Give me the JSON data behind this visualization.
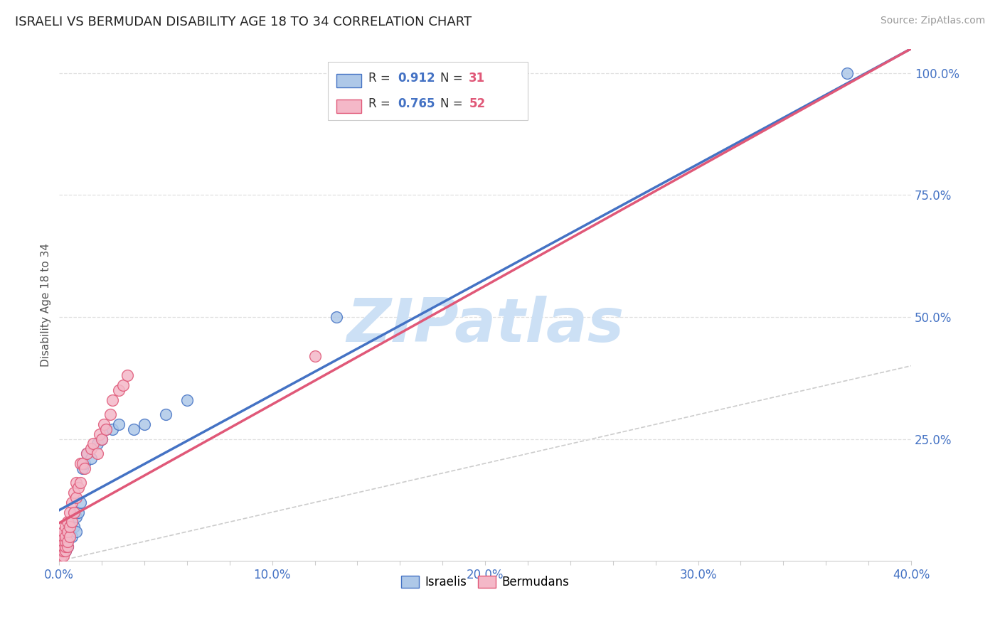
{
  "title": "ISRAELI VS BERMUDAN DISABILITY AGE 18 TO 34 CORRELATION CHART",
  "source": "Source: ZipAtlas.com",
  "ylabel": "Disability Age 18 to 34",
  "xlim": [
    0.0,
    0.4
  ],
  "ylim": [
    0.0,
    1.05
  ],
  "xtick_labels": [
    "0.0%",
    "",
    "",
    "",
    "",
    "10.0%",
    "",
    "",
    "",
    "",
    "20.0%",
    "",
    "",
    "",
    "",
    "30.0%",
    "",
    "",
    "",
    "",
    "40.0%"
  ],
  "xtick_values": [
    0.0,
    0.02,
    0.04,
    0.06,
    0.08,
    0.1,
    0.12,
    0.14,
    0.16,
    0.18,
    0.2,
    0.22,
    0.24,
    0.26,
    0.28,
    0.3,
    0.32,
    0.34,
    0.36,
    0.38,
    0.4
  ],
  "ytick_labels": [
    "25.0%",
    "50.0%",
    "75.0%",
    "100.0%"
  ],
  "ytick_values": [
    0.25,
    0.5,
    0.75,
    1.0
  ],
  "ytick_color": "#4472c4",
  "xtick_color": "#4472c4",
  "israeli_color": "#aec8e8",
  "israeli_edge_color": "#4472c4",
  "bermudan_color": "#f4b8c8",
  "bermudan_edge_color": "#e05878",
  "israeli_R": 0.912,
  "israeli_N": 31,
  "bermudan_R": 0.765,
  "bermudan_N": 52,
  "legend_R_color": "#4472c4",
  "legend_N_color": "#e05878",
  "watermark": "ZIPatlas",
  "watermark_color": "#cce0f5",
  "diagonal_color": "#cccccc",
  "israeli_line_color": "#4472c4",
  "bermudan_line_color": "#e05878",
  "israeli_scatter_x": [
    0.001,
    0.001,
    0.002,
    0.002,
    0.003,
    0.003,
    0.004,
    0.004,
    0.005,
    0.006,
    0.006,
    0.007,
    0.008,
    0.008,
    0.009,
    0.01,
    0.011,
    0.012,
    0.013,
    0.015,
    0.018,
    0.02,
    0.022,
    0.025,
    0.028,
    0.035,
    0.04,
    0.05,
    0.06,
    0.13,
    0.37
  ],
  "israeli_scatter_y": [
    0.01,
    0.02,
    0.02,
    0.03,
    0.02,
    0.04,
    0.03,
    0.06,
    0.07,
    0.05,
    0.08,
    0.07,
    0.09,
    0.06,
    0.1,
    0.12,
    0.19,
    0.2,
    0.22,
    0.21,
    0.24,
    0.25,
    0.27,
    0.27,
    0.28,
    0.27,
    0.28,
    0.3,
    0.33,
    0.5,
    1.0
  ],
  "bermudan_scatter_x": [
    0.001,
    0.001,
    0.001,
    0.001,
    0.001,
    0.001,
    0.001,
    0.001,
    0.002,
    0.002,
    0.002,
    0.002,
    0.002,
    0.002,
    0.002,
    0.003,
    0.003,
    0.003,
    0.003,
    0.003,
    0.004,
    0.004,
    0.004,
    0.004,
    0.005,
    0.005,
    0.005,
    0.006,
    0.006,
    0.007,
    0.007,
    0.008,
    0.008,
    0.009,
    0.01,
    0.01,
    0.011,
    0.012,
    0.013,
    0.015,
    0.016,
    0.018,
    0.019,
    0.02,
    0.021,
    0.022,
    0.024,
    0.025,
    0.028,
    0.03,
    0.032,
    0.12
  ],
  "bermudan_scatter_y": [
    0.01,
    0.01,
    0.02,
    0.02,
    0.03,
    0.03,
    0.04,
    0.05,
    0.01,
    0.02,
    0.03,
    0.03,
    0.04,
    0.05,
    0.06,
    0.02,
    0.03,
    0.04,
    0.05,
    0.07,
    0.03,
    0.04,
    0.06,
    0.08,
    0.05,
    0.07,
    0.1,
    0.08,
    0.12,
    0.1,
    0.14,
    0.13,
    0.16,
    0.15,
    0.16,
    0.2,
    0.2,
    0.19,
    0.22,
    0.23,
    0.24,
    0.22,
    0.26,
    0.25,
    0.28,
    0.27,
    0.3,
    0.33,
    0.35,
    0.36,
    0.38,
    0.42
  ],
  "background_color": "#ffffff",
  "grid_color": "#e0e0e0"
}
